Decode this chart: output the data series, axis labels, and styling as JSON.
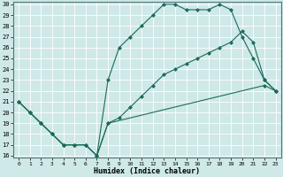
{
  "xlabel": "Humidex (Indice chaleur)",
  "bg_color": "#cfe8e8",
  "grid_color": "#b0d0d0",
  "line_color": "#1a6b5a",
  "line1_x": [
    0,
    1,
    2,
    3,
    4,
    5,
    6,
    7,
    8,
    9,
    10,
    11,
    12,
    13,
    14,
    15,
    16,
    17,
    18,
    19,
    20,
    21,
    22,
    23
  ],
  "line1_y": [
    21,
    20,
    19,
    18,
    17,
    17,
    17,
    16,
    19,
    19.5,
    20.5,
    21.5,
    22.5,
    23.5,
    24,
    24.5,
    25,
    25.5,
    26,
    26.5,
    27.5,
    26.5,
    23,
    22
  ],
  "line2_x": [
    0,
    1,
    2,
    3,
    4,
    5,
    6,
    7,
    8,
    9,
    10,
    11,
    12,
    13,
    14,
    15,
    16,
    17,
    18,
    19,
    20,
    21,
    22,
    23
  ],
  "line2_y": [
    21,
    20,
    19,
    18,
    17,
    17,
    17,
    16,
    23,
    26,
    27,
    28,
    29,
    30,
    30,
    29.5,
    29.5,
    29.5,
    30,
    29.5,
    27,
    25,
    23,
    22
  ],
  "line3_x": [
    0,
    1,
    2,
    3,
    4,
    5,
    6,
    7,
    8,
    22,
    23
  ],
  "line3_y": [
    21,
    20,
    19,
    18,
    17,
    17,
    17,
    16,
    19,
    22.5,
    22
  ],
  "ylim": [
    16,
    30
  ],
  "xlim": [
    -0.5,
    23.5
  ],
  "yticks": [
    16,
    17,
    18,
    19,
    20,
    21,
    22,
    23,
    24,
    25,
    26,
    27,
    28,
    29,
    30
  ],
  "xticks": [
    0,
    1,
    2,
    3,
    4,
    5,
    6,
    7,
    8,
    9,
    10,
    11,
    12,
    13,
    14,
    15,
    16,
    17,
    18,
    19,
    20,
    21,
    22,
    23
  ]
}
